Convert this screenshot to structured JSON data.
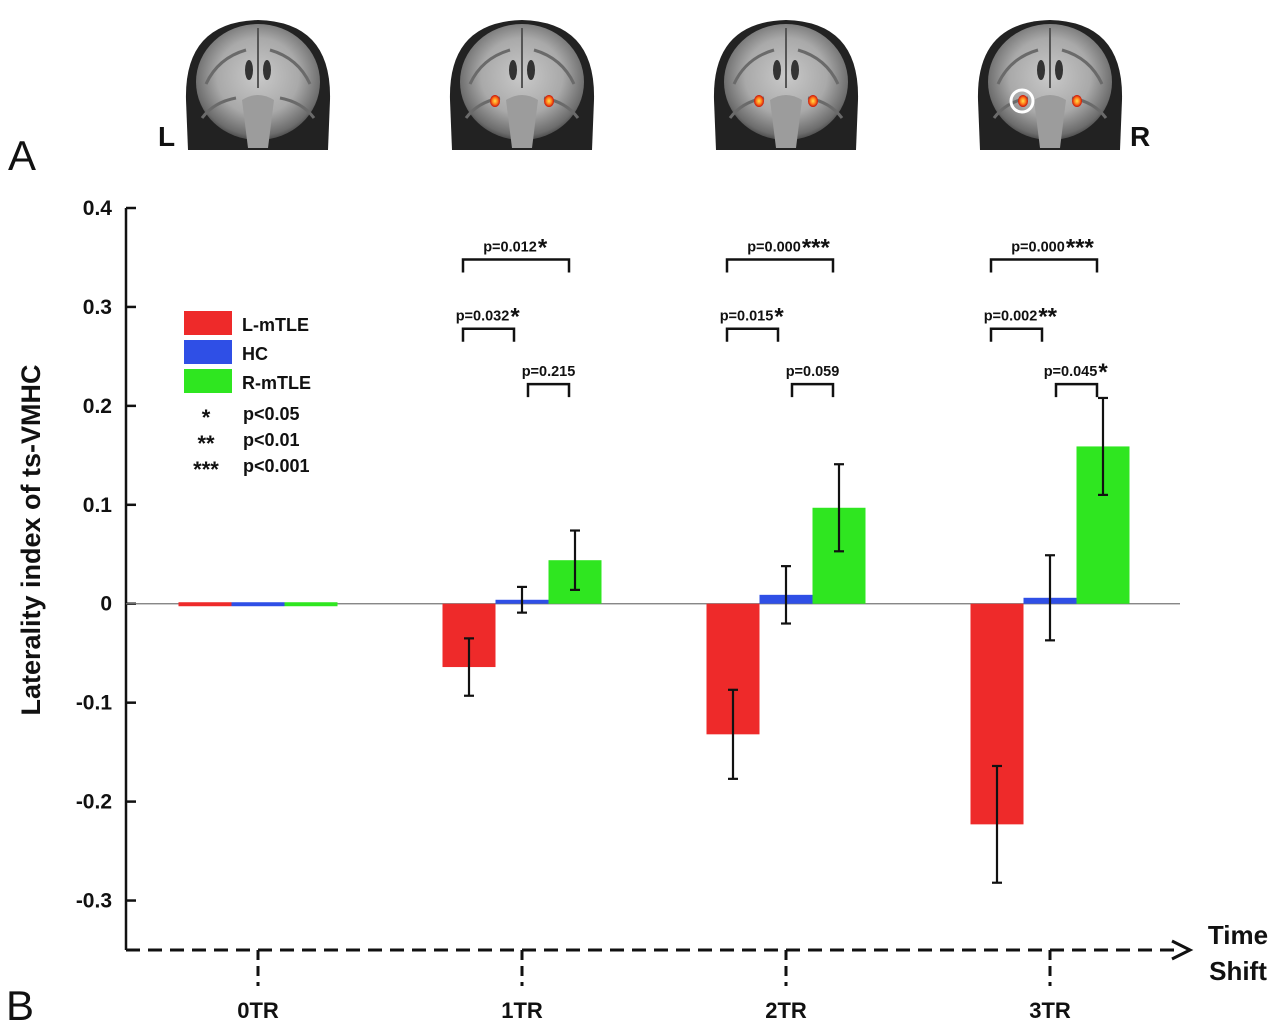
{
  "panel_labels": {
    "a": "A",
    "b": "B"
  },
  "brain_panel": {
    "side_left": "L",
    "side_right": "R"
  },
  "chart_data": {
    "type": "bar",
    "ylabel": "Laterality index of ts-VMHC",
    "xlabel": "Time Shift",
    "ylim": [
      -0.35,
      0.4
    ],
    "yticks": [
      -0.3,
      -0.2,
      -0.1,
      0,
      0.1,
      0.2,
      0.3,
      0.4
    ],
    "ytick_labels": [
      "-0.3",
      "-0.2",
      "-0.1",
      "0",
      "0.1",
      "0.2",
      "0.3",
      "0.4"
    ],
    "categories": [
      "0TR",
      "1TR",
      "2TR",
      "3TR"
    ],
    "series": [
      {
        "name": "L-mTLE",
        "color": "#ee2a2a",
        "values": [
          0.0,
          -0.064,
          -0.132,
          -0.223
        ],
        "errors": [
          0.0,
          0.029,
          0.045,
          0.059
        ]
      },
      {
        "name": "HC",
        "color": "#2f4fe6",
        "values": [
          0.0,
          0.004,
          0.009,
          0.006
        ],
        "errors": [
          0.0,
          0.013,
          0.029,
          0.043
        ]
      },
      {
        "name": "R-mTLE",
        "color": "#2fe620",
        "values": [
          0.0,
          0.044,
          0.097,
          0.159
        ],
        "errors": [
          0.0,
          0.03,
          0.044,
          0.049
        ]
      }
    ],
    "legend": {
      "placement": "top-left",
      "significance": [
        {
          "symbol": "*",
          "label": "p<0.05"
        },
        {
          "symbol": "**",
          "label": "p<0.01"
        },
        {
          "symbol": "***",
          "label": "p<0.001"
        }
      ]
    },
    "comparisons": [
      {
        "category": "1TR",
        "from": "L-mTLE",
        "to": "R-mTLE",
        "label": "p=0.012",
        "stars": "*"
      },
      {
        "category": "1TR",
        "from": "L-mTLE",
        "to": "HC",
        "label": "p=0.032",
        "stars": "*"
      },
      {
        "category": "1TR",
        "from": "HC",
        "to": "R-mTLE",
        "label": "p=0.215",
        "stars": ""
      },
      {
        "category": "2TR",
        "from": "L-mTLE",
        "to": "R-mTLE",
        "label": "p=0.000",
        "stars": "***"
      },
      {
        "category": "2TR",
        "from": "L-mTLE",
        "to": "HC",
        "label": "p=0.015",
        "stars": "*"
      },
      {
        "category": "2TR",
        "from": "HC",
        "to": "R-mTLE",
        "label": "p=0.059",
        "stars": ""
      },
      {
        "category": "3TR",
        "from": "L-mTLE",
        "to": "R-mTLE",
        "label": "p=0.000",
        "stars": "***"
      },
      {
        "category": "3TR",
        "from": "L-mTLE",
        "to": "HC",
        "label": "p=0.002",
        "stars": "**"
      },
      {
        "category": "3TR",
        "from": "HC",
        "to": "R-mTLE",
        "label": "p=0.045",
        "stars": "*"
      }
    ]
  }
}
